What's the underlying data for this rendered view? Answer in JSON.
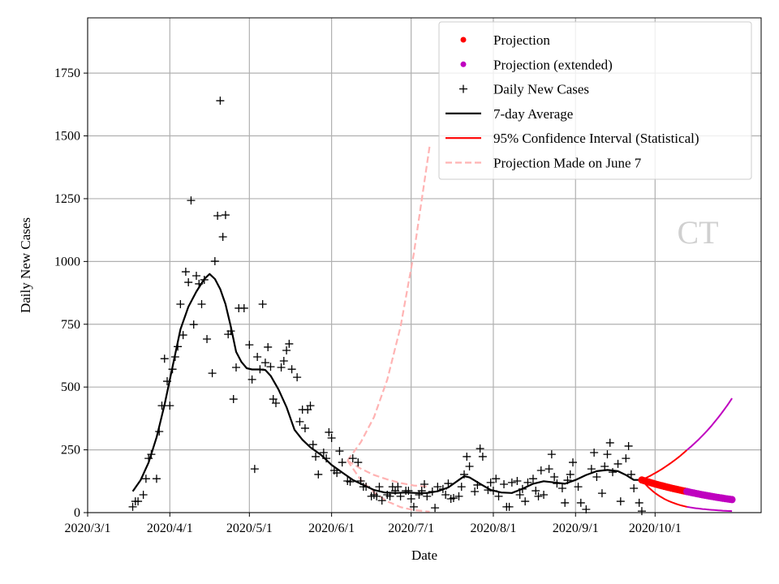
{
  "chart_data": {
    "type": "line",
    "xlabel": "Date",
    "ylabel": "Daily New Cases",
    "x_unit": "days since 2020/3/1",
    "xlim": [
      0,
      254
    ],
    "ylim": [
      0,
      1970
    ],
    "grid": true,
    "legend_placement": "top-right",
    "watermark": "CT",
    "x_ticks": [
      {
        "day": 0,
        "label": "2020/3/1"
      },
      {
        "day": 31,
        "label": "2020/4/1"
      },
      {
        "day": 61,
        "label": "2020/5/1"
      },
      {
        "day": 92,
        "label": "2020/6/1"
      },
      {
        "day": 122,
        "label": "2020/7/1"
      },
      {
        "day": 153,
        "label": "2020/8/1"
      },
      {
        "day": 184,
        "label": "2020/9/1"
      },
      {
        "day": 214,
        "label": "2020/10/1"
      }
    ],
    "y_ticks": [
      0,
      250,
      500,
      750,
      1000,
      1250,
      1500,
      1750
    ],
    "legend": [
      {
        "label": "Projection",
        "kind": "dot",
        "color": "#ff0000"
      },
      {
        "label": "Projection (extended)",
        "kind": "dot",
        "color": "#bf00bf"
      },
      {
        "label": "Daily New Cases",
        "kind": "plus",
        "color": "#000000"
      },
      {
        "label": "7-day Average",
        "kind": "line",
        "color": "#000000"
      },
      {
        "label": "95% Confidence Interval (Statistical)",
        "kind": "line",
        "color": "#ff0000"
      },
      {
        "label": "Projection Made on June 7",
        "kind": "dash",
        "color": "#ffb3b3"
      }
    ],
    "daily_new_cases": [
      [
        17,
        23
      ],
      [
        18,
        45
      ],
      [
        19,
        45
      ],
      [
        21,
        71
      ],
      [
        22,
        135
      ],
      [
        23,
        216
      ],
      [
        24,
        232
      ],
      [
        26,
        135
      ],
      [
        27,
        323
      ],
      [
        28,
        426
      ],
      [
        29,
        613
      ],
      [
        30,
        523
      ],
      [
        31,
        426
      ],
      [
        32,
        571
      ],
      [
        33,
        620
      ],
      [
        34,
        661
      ],
      [
        35,
        830
      ],
      [
        36,
        707
      ],
      [
        37,
        959
      ],
      [
        38,
        917
      ],
      [
        39,
        1243
      ],
      [
        40,
        749
      ],
      [
        41,
        943
      ],
      [
        42,
        911
      ],
      [
        43,
        830
      ],
      [
        44,
        927
      ],
      [
        45,
        691
      ],
      [
        47,
        555
      ],
      [
        48,
        1001
      ],
      [
        49,
        1182
      ],
      [
        50,
        1640
      ],
      [
        51,
        1098
      ],
      [
        52,
        1185
      ],
      [
        53,
        710
      ],
      [
        54,
        723
      ],
      [
        55,
        452
      ],
      [
        56,
        578
      ],
      [
        57,
        814
      ],
      [
        59,
        814
      ],
      [
        61,
        668
      ],
      [
        62,
        530
      ],
      [
        63,
        174
      ],
      [
        64,
        620
      ],
      [
        65,
        571
      ],
      [
        66,
        830
      ],
      [
        67,
        597
      ],
      [
        68,
        659
      ],
      [
        69,
        581
      ],
      [
        70,
        452
      ],
      [
        71,
        436
      ],
      [
        73,
        578
      ],
      [
        74,
        604
      ],
      [
        75,
        646
      ],
      [
        76,
        672
      ],
      [
        77,
        571
      ],
      [
        79,
        539
      ],
      [
        80,
        362
      ],
      [
        81,
        410
      ],
      [
        82,
        336
      ],
      [
        83,
        410
      ],
      [
        84,
        426
      ],
      [
        85,
        271
      ],
      [
        86,
        223
      ],
      [
        87,
        152
      ],
      [
        89,
        239
      ],
      [
        90,
        216
      ],
      [
        91,
        320
      ],
      [
        92,
        297
      ],
      [
        93,
        168
      ],
      [
        94,
        158
      ],
      [
        95,
        245
      ],
      [
        96,
        200
      ],
      [
        98,
        126
      ],
      [
        99,
        123
      ],
      [
        100,
        216
      ],
      [
        102,
        200
      ],
      [
        103,
        126
      ],
      [
        104,
        103
      ],
      [
        105,
        103
      ],
      [
        107,
        65
      ],
      [
        108,
        71
      ],
      [
        109,
        65
      ],
      [
        110,
        103
      ],
      [
        111,
        48
      ],
      [
        113,
        71
      ],
      [
        114,
        65
      ],
      [
        115,
        103
      ],
      [
        116,
        87
      ],
      [
        117,
        103
      ],
      [
        118,
        65
      ],
      [
        120,
        87
      ],
      [
        121,
        87
      ],
      [
        122,
        55
      ],
      [
        123,
        23
      ],
      [
        125,
        71
      ],
      [
        126,
        87
      ],
      [
        127,
        113
      ],
      [
        128,
        65
      ],
      [
        130,
        84
      ],
      [
        131,
        19
      ],
      [
        132,
        103
      ],
      [
        134,
        94
      ],
      [
        135,
        71
      ],
      [
        136,
        116
      ],
      [
        137,
        55
      ],
      [
        138,
        58
      ],
      [
        140,
        65
      ],
      [
        141,
        103
      ],
      [
        142,
        152
      ],
      [
        143,
        223
      ],
      [
        144,
        184
      ],
      [
        146,
        84
      ],
      [
        147,
        110
      ],
      [
        148,
        255
      ],
      [
        149,
        223
      ],
      [
        151,
        90
      ],
      [
        152,
        120
      ],
      [
        153,
        87
      ],
      [
        154,
        135
      ],
      [
        155,
        65
      ],
      [
        157,
        113
      ],
      [
        158,
        23
      ],
      [
        159,
        23
      ],
      [
        160,
        120
      ],
      [
        162,
        126
      ],
      [
        163,
        71
      ],
      [
        164,
        94
      ],
      [
        165,
        45
      ],
      [
        166,
        120
      ],
      [
        168,
        135
      ],
      [
        169,
        87
      ],
      [
        170,
        65
      ],
      [
        171,
        168
      ],
      [
        172,
        71
      ],
      [
        174,
        174
      ],
      [
        175,
        232
      ],
      [
        176,
        142
      ],
      [
        177,
        116
      ],
      [
        179,
        97
      ],
      [
        180,
        39
      ],
      [
        181,
        129
      ],
      [
        182,
        152
      ],
      [
        183,
        200
      ],
      [
        185,
        103
      ],
      [
        186,
        39
      ],
      [
        188,
        13
      ],
      [
        190,
        174
      ],
      [
        191,
        239
      ],
      [
        192,
        142
      ],
      [
        194,
        77
      ],
      [
        195,
        184
      ],
      [
        196,
        232
      ],
      [
        197,
        278
      ],
      [
        198,
        161
      ],
      [
        200,
        194
      ],
      [
        201,
        45
      ],
      [
        203,
        216
      ],
      [
        204,
        265
      ],
      [
        205,
        152
      ],
      [
        206,
        97
      ],
      [
        208,
        39
      ],
      [
        209,
        6
      ]
    ],
    "seven_day_average": [
      [
        17,
        85
      ],
      [
        20,
        130
      ],
      [
        23,
        200
      ],
      [
        26,
        300
      ],
      [
        29,
        430
      ],
      [
        32,
        580
      ],
      [
        35,
        730
      ],
      [
        38,
        820
      ],
      [
        41,
        880
      ],
      [
        44,
        930
      ],
      [
        46,
        950
      ],
      [
        48,
        930
      ],
      [
        50,
        890
      ],
      [
        52,
        830
      ],
      [
        54,
        740
      ],
      [
        56,
        640
      ],
      [
        58,
        600
      ],
      [
        60,
        575
      ],
      [
        62,
        570
      ],
      [
        65,
        570
      ],
      [
        67,
        568
      ],
      [
        69,
        545
      ],
      [
        72,
        490
      ],
      [
        75,
        420
      ],
      [
        78,
        330
      ],
      [
        81,
        290
      ],
      [
        84,
        260
      ],
      [
        88,
        230
      ],
      [
        92,
        190
      ],
      [
        96,
        160
      ],
      [
        100,
        130
      ],
      [
        104,
        110
      ],
      [
        108,
        90
      ],
      [
        112,
        80
      ],
      [
        116,
        78
      ],
      [
        120,
        80
      ],
      [
        124,
        78
      ],
      [
        128,
        78
      ],
      [
        132,
        85
      ],
      [
        136,
        100
      ],
      [
        140,
        130
      ],
      [
        142,
        145
      ],
      [
        144,
        140
      ],
      [
        148,
        115
      ],
      [
        152,
        90
      ],
      [
        156,
        80
      ],
      [
        160,
        78
      ],
      [
        164,
        95
      ],
      [
        168,
        115
      ],
      [
        172,
        125
      ],
      [
        176,
        120
      ],
      [
        180,
        115
      ],
      [
        184,
        130
      ],
      [
        188,
        150
      ],
      [
        192,
        165
      ],
      [
        196,
        170
      ],
      [
        200,
        165
      ],
      [
        203,
        150
      ],
      [
        206,
        130
      ],
      [
        209,
        130
      ]
    ],
    "projection": {
      "start_day": 209,
      "end_day": 226,
      "start_value": 130,
      "end_value": 84
    },
    "projection_extended": {
      "start_day": 226,
      "end_day": 243,
      "start_value": 84,
      "end_value": 52
    },
    "ci_upper": {
      "start_day": 209,
      "split_day": 226,
      "end_day": 243,
      "values": [
        130,
        249,
        455
      ]
    },
    "ci_lower": {
      "start_day": 209,
      "split_day": 226,
      "end_day": 243,
      "values": [
        130,
        23,
        6
      ]
    },
    "june7_projection": {
      "upper": [
        [
          98,
          207
        ],
        [
          103,
          280
        ],
        [
          108,
          380
        ],
        [
          113,
          530
        ],
        [
          118,
          740
        ],
        [
          123,
          1030
        ],
        [
          129,
          1460
        ]
      ],
      "middle": [
        [
          98,
          207
        ],
        [
          103,
          175
        ],
        [
          108,
          150
        ],
        [
          113,
          132
        ],
        [
          118,
          118
        ],
        [
          123,
          108
        ],
        [
          129,
          103
        ]
      ],
      "lower": [
        [
          98,
          207
        ],
        [
          103,
          130
        ],
        [
          108,
          80
        ],
        [
          113,
          45
        ],
        [
          118,
          22
        ],
        [
          123,
          10
        ],
        [
          129,
          4
        ]
      ]
    }
  }
}
